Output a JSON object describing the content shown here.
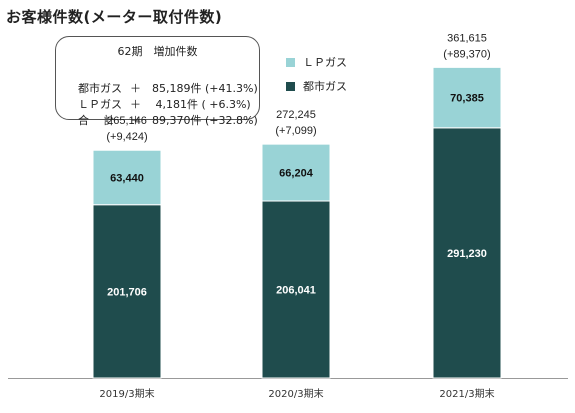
{
  "title": "お客様件数(メーター取付件数)",
  "summary": {
    "heading": "62期　増加件数",
    "rows": [
      {
        "label": "都市ガス",
        "value": "＋　85,189件 (+41.3%)"
      },
      {
        "label": "ＬＰガス",
        "value": "＋　 4,181件 ( +6.3%)"
      },
      {
        "label": "合　 計",
        "value": "＋　89,370件 (+32.8%)"
      }
    ]
  },
  "legend": [
    {
      "label": "ＬＰガス",
      "color": "#99d3d6"
    },
    {
      "label": "都市ガス",
      "color": "#1f4c4d"
    }
  ],
  "chart_data": {
    "type": "bar",
    "stacked": true,
    "categories": [
      "2019/3期末",
      "2020/3期末",
      "2021/3期末"
    ],
    "series": [
      {
        "name": "都市ガス",
        "values": [
          201706,
          206041,
          291230
        ],
        "color": "#1f4c4d"
      },
      {
        "name": "ＬＰガス",
        "values": [
          63440,
          66204,
          70385
        ],
        "color": "#99d3d6"
      }
    ],
    "totals": [
      265146,
      272245,
      361615
    ],
    "totals_labels": [
      "265,146",
      "272,245",
      "361,615"
    ],
    "increase_labels": [
      "(+9,424)",
      "(+7,099)",
      "(+89,370)"
    ],
    "segment_labels": {
      "都市ガス": [
        "201,706",
        "206,041",
        "291,230"
      ],
      "ＬＰガス": [
        "63,440",
        "66,204",
        "70,385"
      ]
    },
    "ylim": [
      0,
      400000
    ],
    "grid": false
  }
}
